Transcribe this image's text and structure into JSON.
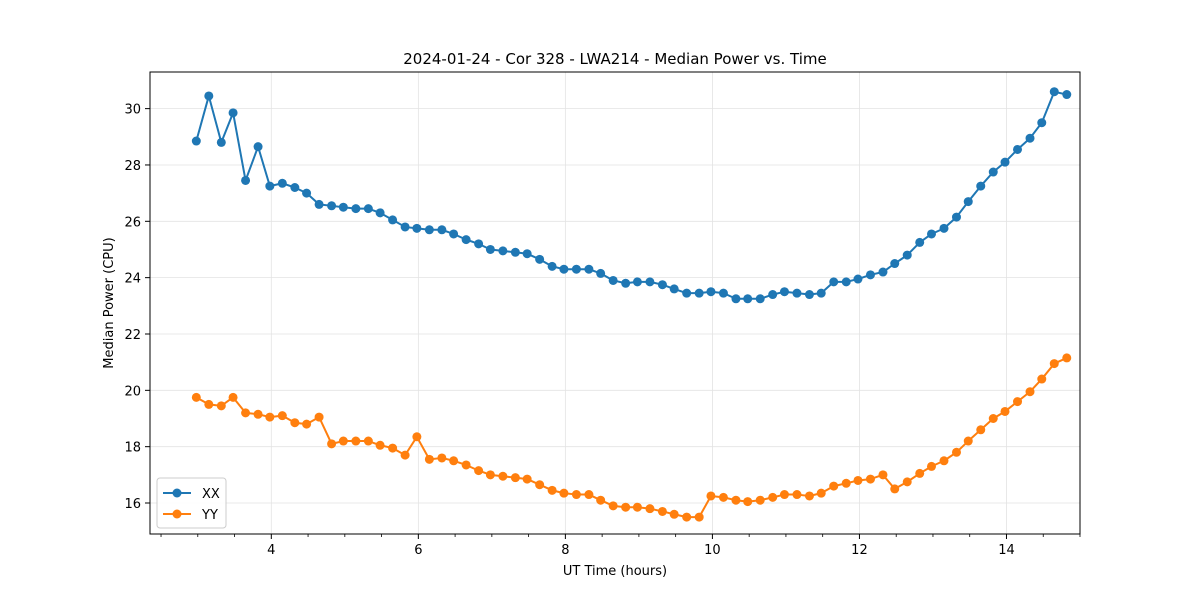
{
  "chart_data": {
    "type": "line",
    "title": "2024-01-24 - Cor 328 - LWA214 - Median Power vs. Time",
    "xlabel": "UT Time (hours)",
    "ylabel": "Median Power (CPU)",
    "xlim": [
      2.35,
      15.0
    ],
    "ylim": [
      14.9,
      31.3
    ],
    "xticks": [
      4,
      6,
      8,
      10,
      12,
      14
    ],
    "yticks": [
      16,
      18,
      20,
      22,
      24,
      26,
      28,
      30
    ],
    "grid": true,
    "legend_position": "lower-left",
    "x": [
      2.98,
      3.15,
      3.32,
      3.48,
      3.65,
      3.82,
      3.98,
      4.15,
      4.32,
      4.48,
      4.65,
      4.82,
      4.98,
      5.15,
      5.32,
      5.48,
      5.65,
      5.82,
      5.98,
      6.15,
      6.32,
      6.48,
      6.65,
      6.82,
      6.98,
      7.15,
      7.32,
      7.48,
      7.65,
      7.82,
      7.98,
      8.15,
      8.32,
      8.48,
      8.65,
      8.82,
      8.98,
      9.15,
      9.32,
      9.48,
      9.65,
      9.82,
      9.98,
      10.15,
      10.32,
      10.48,
      10.65,
      10.82,
      10.98,
      11.15,
      11.32,
      11.48,
      11.65,
      11.82,
      11.98,
      12.15,
      12.32,
      12.48,
      12.65,
      12.82,
      12.98,
      13.15,
      13.32,
      13.48,
      13.65,
      13.82,
      13.98,
      14.15,
      14.32,
      14.48,
      14.65,
      14.82
    ],
    "series": [
      {
        "name": "XX",
        "color": "#1f77b4",
        "values": [
          28.85,
          30.45,
          28.8,
          29.85,
          27.45,
          28.65,
          27.25,
          27.35,
          27.2,
          27.0,
          26.6,
          26.55,
          26.5,
          26.45,
          26.45,
          26.3,
          26.05,
          25.8,
          25.75,
          25.7,
          25.7,
          25.55,
          25.35,
          25.2,
          25.0,
          24.95,
          24.9,
          24.85,
          24.65,
          24.4,
          24.3,
          24.3,
          24.3,
          24.15,
          23.9,
          23.8,
          23.85,
          23.85,
          23.75,
          23.6,
          23.45,
          23.45,
          23.5,
          23.45,
          23.25,
          23.25,
          23.25,
          23.4,
          23.5,
          23.45,
          23.4,
          23.45,
          23.85,
          23.85,
          23.95,
          24.1,
          24.2,
          24.5,
          24.8,
          25.25,
          25.55,
          25.75,
          26.15,
          26.7,
          27.25,
          27.75,
          28.1,
          28.55,
          28.95,
          29.5,
          30.6,
          30.5
        ]
      },
      {
        "name": "YY",
        "color": "#ff7f0e",
        "values": [
          19.75,
          19.5,
          19.45,
          19.75,
          19.2,
          19.15,
          19.05,
          19.1,
          18.85,
          18.8,
          19.05,
          18.1,
          18.2,
          18.2,
          18.2,
          18.05,
          17.95,
          17.7,
          18.35,
          17.55,
          17.6,
          17.5,
          17.35,
          17.15,
          17.0,
          16.95,
          16.9,
          16.85,
          16.65,
          16.45,
          16.35,
          16.3,
          16.3,
          16.1,
          15.9,
          15.85,
          15.85,
          15.8,
          15.7,
          15.6,
          15.5,
          15.5,
          16.25,
          16.2,
          16.1,
          16.05,
          16.1,
          16.2,
          16.3,
          16.3,
          16.25,
          16.35,
          16.6,
          16.7,
          16.8,
          16.85,
          17.0,
          16.5,
          16.75,
          17.05,
          17.3,
          17.5,
          17.8,
          18.2,
          18.6,
          19.0,
          19.25,
          19.6,
          19.95,
          20.4,
          20.95,
          21.15
        ]
      }
    ]
  }
}
